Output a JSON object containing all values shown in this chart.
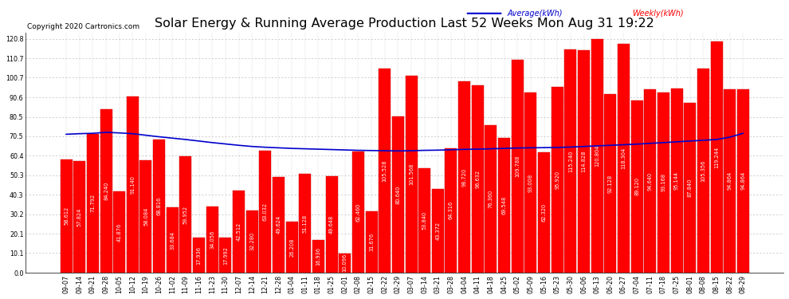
{
  "title": "Solar Energy & Running Average Production Last 52 Weeks Mon Aug 31 19:22",
  "copyright": "Copyright 2020 Cartronics.com",
  "legend_avg": "Average(kWh)",
  "legend_weekly": "Weekly(kWh)",
  "categories": [
    "09-07",
    "09-14",
    "09-21",
    "09-28",
    "10-05",
    "10-12",
    "10-19",
    "10-26",
    "11-02",
    "11-09",
    "11-16",
    "11-23",
    "11-30",
    "12-07",
    "12-14",
    "12-21",
    "12-28",
    "01-04",
    "01-11",
    "01-18",
    "01-25",
    "02-01",
    "02-08",
    "02-15",
    "02-22",
    "02-29",
    "03-07",
    "03-14",
    "03-21",
    "03-28",
    "04-04",
    "04-11",
    "04-18",
    "04-25",
    "05-02",
    "05-09",
    "05-16",
    "05-23",
    "05-30",
    "06-06",
    "06-13",
    "06-20",
    "06-27",
    "07-04",
    "07-11",
    "07-18",
    "07-25",
    "08-01",
    "08-08",
    "08-15",
    "08-22",
    "08-29"
  ],
  "weekly_values": [
    58.612,
    57.824,
    71.792,
    84.24,
    41.876,
    91.14,
    58.084,
    68.816,
    33.684,
    59.952,
    17.936,
    34.056,
    17.992,
    42.512,
    32.28,
    63.032,
    49.624,
    26.208,
    51.128,
    16.936,
    49.648,
    10.096,
    62.46,
    31.676,
    105.528,
    80.64,
    101.568,
    53.84,
    43.372,
    64.316,
    98.72,
    96.632,
    76.36,
    69.548,
    109.788,
    93.008,
    62.32,
    95.92,
    115.24,
    114.828,
    120.804,
    92.128,
    118.304,
    89.12,
    94.64,
    93.168,
    95.144,
    87.84,
    105.356,
    119.244,
    94.864,
    94.864
  ],
  "average_values": [
    71.5,
    71.8,
    72.0,
    72.5,
    72.2,
    71.8,
    71.0,
    70.2,
    69.5,
    68.8,
    68.0,
    67.2,
    66.5,
    65.8,
    65.2,
    64.8,
    64.5,
    64.2,
    64.0,
    63.8,
    63.6,
    63.4,
    63.2,
    63.1,
    63.0,
    62.9,
    63.0,
    63.2,
    63.3,
    63.5,
    63.7,
    63.8,
    64.0,
    64.2,
    64.4,
    64.5,
    64.6,
    64.7,
    64.9,
    65.2,
    65.5,
    65.8,
    66.1,
    66.4,
    66.8,
    67.2,
    67.6,
    68.0,
    68.4,
    68.8,
    70.0,
    72.0
  ],
  "bar_color": "#ff0000",
  "bar_edge_color": "#cc0000",
  "avg_line_color": "#0000cd",
  "background_color": "#ffffff",
  "grid_color": "#bbbbbb",
  "yticks": [
    0.0,
    10.1,
    20.1,
    30.2,
    40.3,
    50.3,
    60.4,
    70.5,
    80.5,
    90.6,
    100.7,
    110.7,
    120.8
  ],
  "ylim": [
    0.0,
    124.0
  ],
  "title_fontsize": 11.5,
  "copyright_fontsize": 6.5,
  "tick_fontsize": 5.8,
  "value_fontsize": 4.8
}
